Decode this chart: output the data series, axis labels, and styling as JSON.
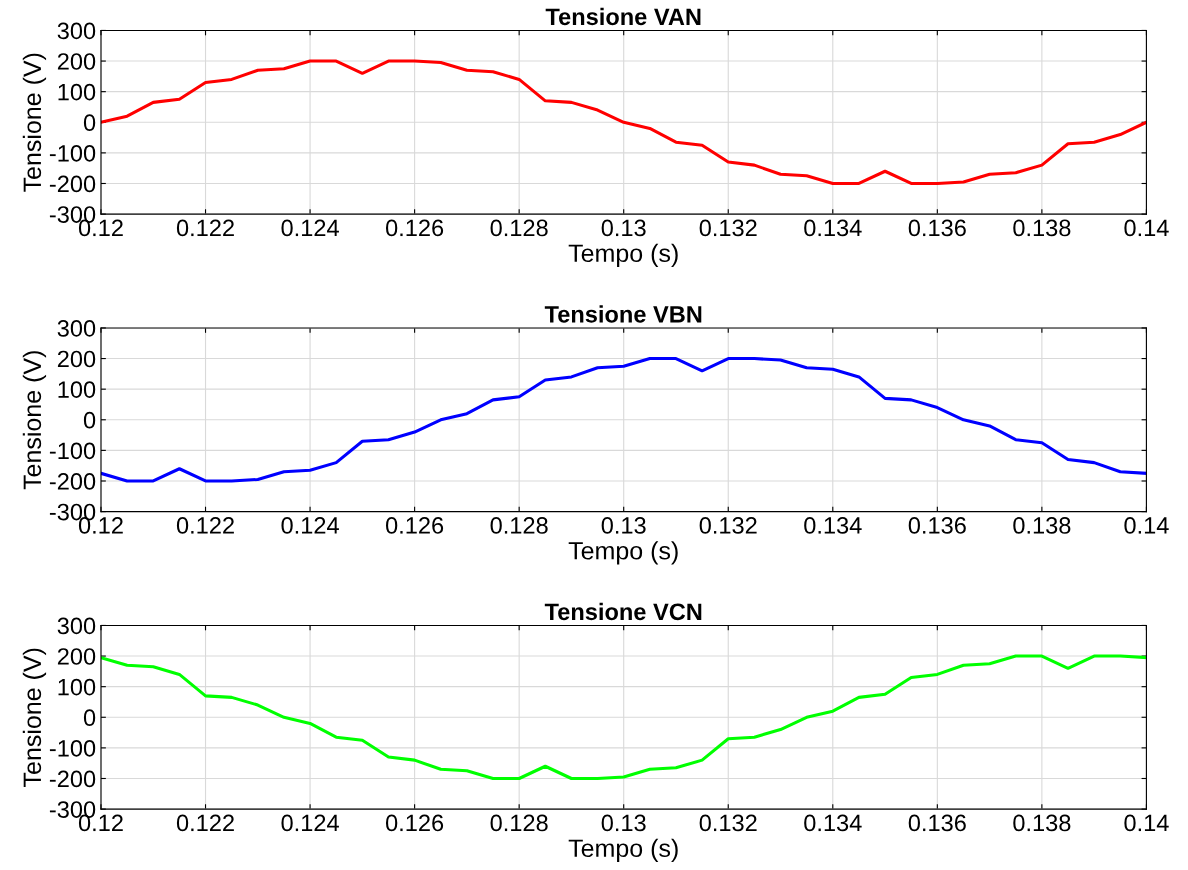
{
  "chart_data": [
    {
      "type": "line",
      "title": "Tensione VAN",
      "xlabel": "Tempo (s)",
      "ylabel": "Tensione (V)",
      "xlim": [
        0.12,
        0.14
      ],
      "ylim": [
        -300,
        300
      ],
      "xticks": [
        0.12,
        0.122,
        0.124,
        0.126,
        0.128,
        0.13,
        0.132,
        0.134,
        0.136,
        0.138,
        0.14
      ],
      "yticks": [
        -300,
        -200,
        -100,
        0,
        100,
        200,
        300
      ],
      "grid": true,
      "x": [
        0.12,
        0.1205,
        0.121,
        0.1215,
        0.122,
        0.1225,
        0.123,
        0.1235,
        0.124,
        0.1245,
        0.125,
        0.1255,
        0.126,
        0.1265,
        0.127,
        0.1275,
        0.128,
        0.1285,
        0.129,
        0.1295,
        0.13,
        0.1305,
        0.131,
        0.1315,
        0.132,
        0.1325,
        0.133,
        0.1335,
        0.134,
        0.1345,
        0.135,
        0.1355,
        0.136,
        0.1365,
        0.137,
        0.1375,
        0.138,
        0.1385,
        0.139,
        0.1395,
        0.14
      ],
      "series": [
        {
          "color": "#ff0000",
          "values": [
            0,
            20,
            65,
            75,
            130,
            140,
            170,
            175,
            200,
            200,
            160,
            200,
            200,
            195,
            170,
            165,
            140,
            70,
            65,
            40,
            0,
            -20,
            -65,
            -75,
            -130,
            -140,
            -170,
            -175,
            -200,
            -200,
            -160,
            -200,
            -200,
            -195,
            -170,
            -165,
            -140,
            -70,
            -65,
            -40,
            0
          ]
        }
      ]
    },
    {
      "type": "line",
      "title": "Tensione VBN",
      "xlabel": "Tempo (s)",
      "ylabel": "Tensione (V)",
      "xlim": [
        0.12,
        0.14
      ],
      "ylim": [
        -300,
        300
      ],
      "xticks": [
        0.12,
        0.122,
        0.124,
        0.126,
        0.128,
        0.13,
        0.132,
        0.134,
        0.136,
        0.138,
        0.14
      ],
      "yticks": [
        -300,
        -200,
        -100,
        0,
        100,
        200,
        300
      ],
      "grid": true,
      "x": [
        0.12,
        0.1205,
        0.121,
        0.1215,
        0.122,
        0.1225,
        0.123,
        0.1235,
        0.124,
        0.1245,
        0.125,
        0.1255,
        0.126,
        0.1265,
        0.127,
        0.1275,
        0.128,
        0.1285,
        0.129,
        0.1295,
        0.13,
        0.1305,
        0.131,
        0.1315,
        0.132,
        0.1325,
        0.133,
        0.1335,
        0.134,
        0.1345,
        0.135,
        0.1355,
        0.136,
        0.1365,
        0.137,
        0.1375,
        0.138,
        0.1385,
        0.139,
        0.1395,
        0.14
      ],
      "series": [
        {
          "color": "#0000ff",
          "values": [
            -175,
            -200,
            -200,
            -160,
            -200,
            -200,
            -195,
            -170,
            -165,
            -140,
            -70,
            -65,
            -40,
            0,
            20,
            65,
            75,
            130,
            140,
            170,
            175,
            200,
            200,
            160,
            200,
            200,
            195,
            170,
            165,
            140,
            70,
            65,
            40,
            0,
            -20,
            -65,
            -75,
            -130,
            -140,
            -170,
            -175
          ]
        }
      ]
    },
    {
      "type": "line",
      "title": "Tensione VCN",
      "xlabel": "Tempo (s)",
      "ylabel": "Tensione (V)",
      "xlim": [
        0.12,
        0.14
      ],
      "ylim": [
        -300,
        300
      ],
      "xticks": [
        0.12,
        0.122,
        0.124,
        0.126,
        0.128,
        0.13,
        0.132,
        0.134,
        0.136,
        0.138,
        0.14
      ],
      "yticks": [
        -300,
        -200,
        -100,
        0,
        100,
        200,
        300
      ],
      "grid": true,
      "x": [
        0.12,
        0.1205,
        0.121,
        0.1215,
        0.122,
        0.1225,
        0.123,
        0.1235,
        0.124,
        0.1245,
        0.125,
        0.1255,
        0.126,
        0.1265,
        0.127,
        0.1275,
        0.128,
        0.1285,
        0.129,
        0.1295,
        0.13,
        0.1305,
        0.131,
        0.1315,
        0.132,
        0.1325,
        0.133,
        0.1335,
        0.134,
        0.1345,
        0.135,
        0.1355,
        0.136,
        0.1365,
        0.137,
        0.1375,
        0.138,
        0.1385,
        0.139,
        0.1395,
        0.14
      ],
      "series": [
        {
          "color": "#00ff00",
          "values": [
            195,
            170,
            165,
            140,
            70,
            65,
            40,
            0,
            -20,
            -65,
            -75,
            -130,
            -140,
            -170,
            -175,
            -200,
            -200,
            -160,
            -200,
            -200,
            -195,
            -170,
            -165,
            -140,
            -70,
            -65,
            -40,
            0,
            20,
            65,
            75,
            130,
            140,
            170,
            175,
            200,
            200,
            160,
            200,
            200,
            195
          ]
        }
      ]
    }
  ]
}
